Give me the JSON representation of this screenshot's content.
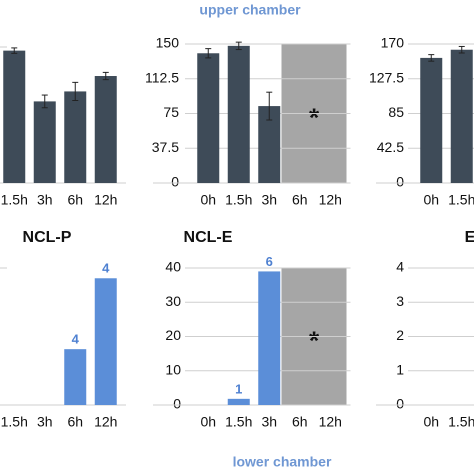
{
  "header": "upper chamber",
  "footer": "lower chamber",
  "chart_data": [
    {
      "type": "bar",
      "categories": [
        "1.5h",
        "3h",
        "6h",
        "12h"
      ],
      "values": [
        146,
        90,
        101,
        118
      ],
      "errors": [
        3,
        7,
        10,
        4
      ],
      "color": "#3e4b58",
      "ylim": [
        0,
        150
      ]
    },
    {
      "type": "bar",
      "categories": [
        "0h",
        "1.5h",
        "3h",
        "6h",
        "12h"
      ],
      "values": [
        140,
        148,
        83,
        null,
        null
      ],
      "errors": [
        5,
        4,
        15,
        null,
        null
      ],
      "color": "#3e4b58",
      "ylim": [
        0,
        150
      ],
      "yticks": [
        0,
        37.5,
        75,
        112.5,
        150
      ],
      "grid": true,
      "annotation": {
        "text": "*",
        "shaded": [
          3,
          4
        ],
        "color": "#a6a6a6"
      }
    },
    {
      "type": "bar",
      "categories": [
        "0h",
        "1.5h"
      ],
      "values": [
        153,
        163
      ],
      "errors": [
        4,
        4
      ],
      "color": "#3e4b58",
      "ylim": [
        0,
        170
      ],
      "yticks": [
        0,
        42.5,
        85,
        127.5,
        170
      ],
      "grid": true
    },
    {
      "type": "bar",
      "title": "NCL-P",
      "categories": [
        "1.5h",
        "3h",
        "6h",
        "12h"
      ],
      "values": [
        null,
        null,
        16.3,
        37
      ],
      "counts": [
        null,
        null,
        4,
        4
      ],
      "color": "#5b8ed8",
      "ylim": [
        0,
        40
      ]
    },
    {
      "type": "bar",
      "title": "NCL-E",
      "categories": [
        "0h",
        "1.5h",
        "3h",
        "6h",
        "12h"
      ],
      "values": [
        null,
        1.8,
        39,
        null,
        null
      ],
      "counts": [
        null,
        1,
        6,
        null,
        null
      ],
      "color": "#5b8ed8",
      "ylim": [
        0,
        40
      ],
      "yticks": [
        0,
        10,
        20,
        30,
        40
      ],
      "grid": true,
      "annotation": {
        "text": "*",
        "shaded": [
          3,
          4
        ],
        "color": "#a6a6a6"
      }
    },
    {
      "type": "bar",
      "title": "E",
      "categories": [
        "0h",
        "1.5h"
      ],
      "values": [
        null,
        null
      ],
      "color": "#5b8ed8",
      "ylim": [
        0,
        4
      ],
      "yticks": [
        0,
        1,
        2,
        3,
        4
      ],
      "grid": true
    }
  ]
}
